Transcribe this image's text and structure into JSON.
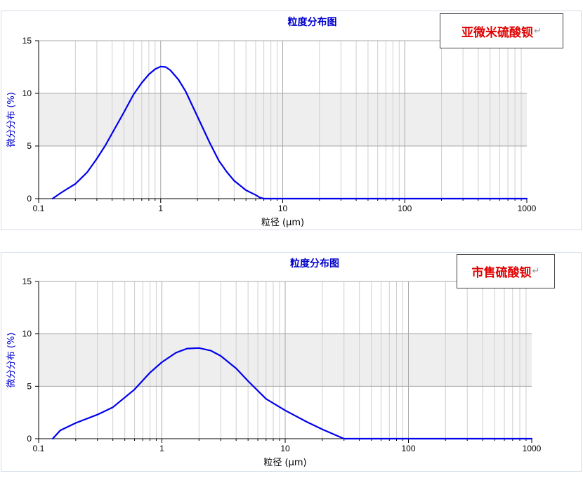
{
  "chart_data": [
    {
      "type": "line",
      "title": "粒度分布图",
      "xlabel": "粒径 (μm)",
      "ylabel": "微分分布 (%)",
      "xscale": "log",
      "xlim": [
        0.1,
        1000
      ],
      "ylim": [
        0,
        15
      ],
      "x_ticks": [
        0.1,
        1,
        10,
        100,
        1000
      ],
      "x_tick_labels": [
        "0.1",
        "1",
        "10",
        "100",
        "1000"
      ],
      "y_ticks": [
        0,
        5,
        10,
        15
      ],
      "y_tick_labels": [
        "0",
        "5",
        "10",
        "15"
      ],
      "shaded_band": [
        5,
        10
      ],
      "grid": true,
      "annotation": "亚微米硫酸钡",
      "line_color": "#0000ee",
      "series": [
        {
          "x": [
            0.13,
            0.15,
            0.17,
            0.2,
            0.25,
            0.3,
            0.35,
            0.4,
            0.5,
            0.6,
            0.7,
            0.8,
            0.9,
            1.0,
            1.1,
            1.2,
            1.4,
            1.6,
            2.0,
            2.5,
            3.0,
            3.5,
            4.0,
            5.0,
            6.0,
            6.5,
            7.0,
            10,
            100,
            1000
          ],
          "y": [
            0,
            0.5,
            0.9,
            1.4,
            2.5,
            3.8,
            5.0,
            6.2,
            8.2,
            9.9,
            11.0,
            11.8,
            12.3,
            12.55,
            12.5,
            12.2,
            11.3,
            10.2,
            7.8,
            5.4,
            3.6,
            2.5,
            1.7,
            0.8,
            0.35,
            0.1,
            0,
            0,
            0,
            0
          ]
        }
      ]
    },
    {
      "type": "line",
      "title": "粒度分布图",
      "xlabel": "粒径 (μm)",
      "ylabel": "微分分布 (%)",
      "xscale": "log",
      "xlim": [
        0.1,
        1000
      ],
      "ylim": [
        0,
        15
      ],
      "x_ticks": [
        0.1,
        1,
        10,
        100,
        1000
      ],
      "x_tick_labels": [
        "0.1",
        "1",
        "10",
        "100",
        "1000"
      ],
      "y_ticks": [
        0,
        5,
        10,
        15
      ],
      "y_tick_labels": [
        "0",
        "5",
        "10",
        "15"
      ],
      "shaded_band": [
        5,
        10
      ],
      "grid": true,
      "annotation": "市售硫酸钡",
      "line_color": "#0000ee",
      "series": [
        {
          "x": [
            0.13,
            0.15,
            0.2,
            0.3,
            0.4,
            0.6,
            0.8,
            1.0,
            1.3,
            1.6,
            2.0,
            2.5,
            3.0,
            4.0,
            5.0,
            7.0,
            10,
            15,
            20,
            25,
            30,
            100,
            1000
          ],
          "y": [
            0,
            0.8,
            1.5,
            2.3,
            3.0,
            4.7,
            6.3,
            7.3,
            8.2,
            8.6,
            8.65,
            8.4,
            7.9,
            6.7,
            5.5,
            3.8,
            2.7,
            1.6,
            0.9,
            0.4,
            0,
            0,
            0
          ]
        }
      ]
    }
  ]
}
